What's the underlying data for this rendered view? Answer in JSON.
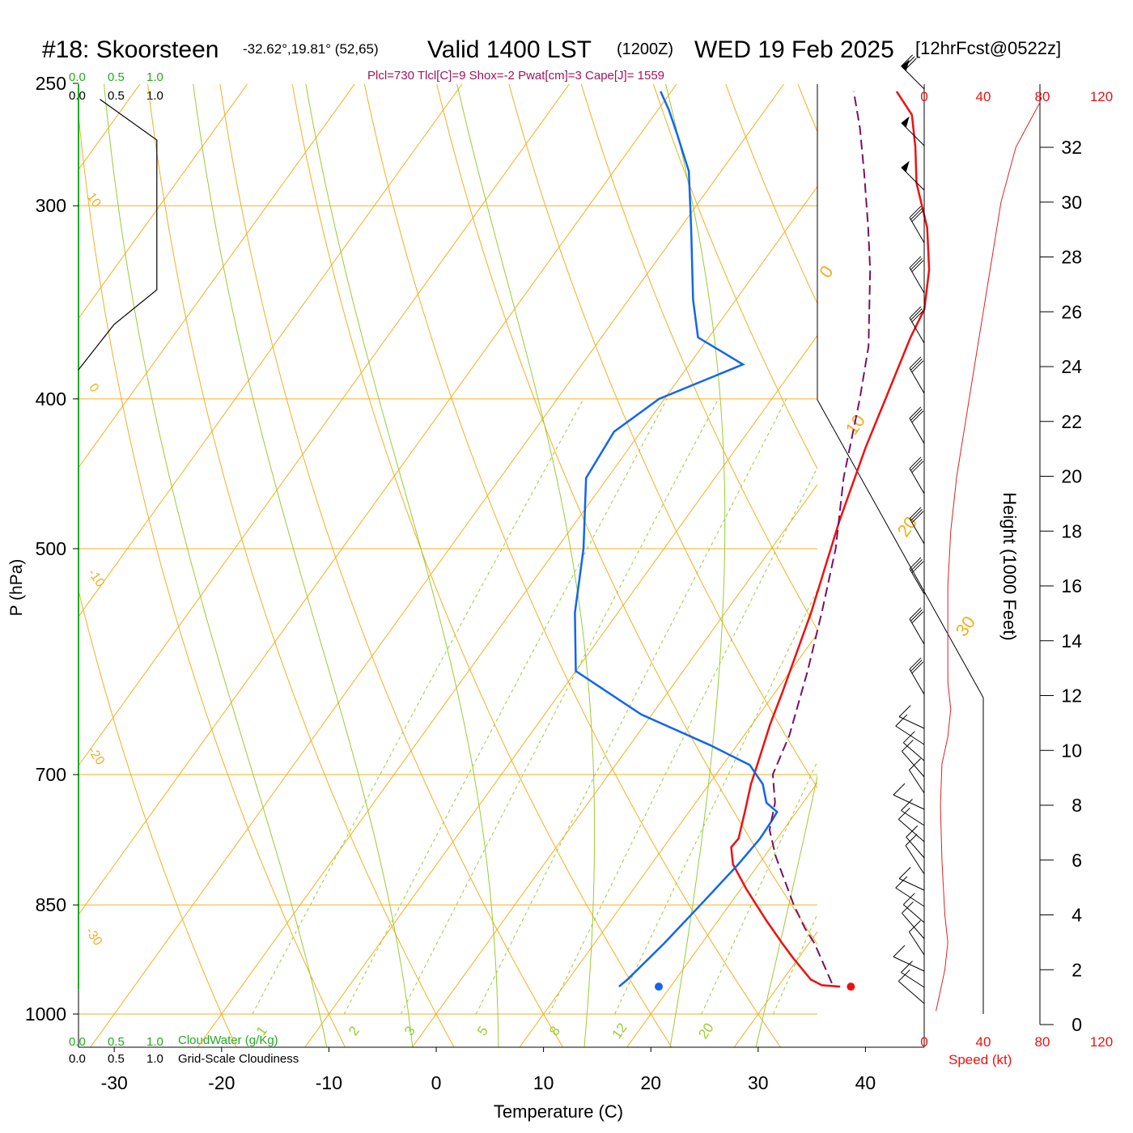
{
  "header": {
    "station": "#18: Skoorsteen",
    "coords": "-32.62°,19.81° (52,65)",
    "valid": "Valid 1400 LST",
    "zulu": "(1200Z)",
    "date": "WED 19 Feb 2025",
    "forecast": "[12hrFcst@0522z]",
    "indices": "Plcl=730 Tlcl[C]=9 Shox=-2 Pwat[cm]=3 Cape[J]= 1559"
  },
  "cloud_scale": {
    "top_green": [
      "0.0",
      "0.5",
      "1.0"
    ],
    "top_black": [
      "0.0",
      "0.5",
      "1.0"
    ],
    "bottom_green": [
      "0.0",
      "0.5",
      "1.0"
    ],
    "bottom_black": [
      "0.0",
      "0.5",
      "1.0"
    ],
    "cloudwater_label": "CloudWater (g/Kg)",
    "cloudiness_label": "Grid-Scale Cloudiness"
  },
  "chart_data": {
    "type": "line",
    "title": "",
    "xlabel": "Temperature (C)",
    "ylabel": "P (hPa)",
    "x_scale": "skewed",
    "y_scale": "log",
    "xlim": [
      -34,
      46
    ],
    "ylim": [
      1030,
      250
    ],
    "x_ticks": [
      "-30",
      "-20",
      "-10",
      "0",
      "10",
      "20",
      "30",
      "40"
    ],
    "y_ticks": [
      "250",
      "300",
      "400",
      "500",
      "700",
      "850",
      "1000"
    ],
    "grid": true,
    "isotherm_labels": [
      "10",
      "0",
      "-10",
      "-20",
      "-30",
      "0",
      "10",
      "20",
      "30"
    ],
    "mixing_ratio_labels": [
      "1",
      "2",
      "3",
      "5",
      "8",
      "12",
      "20"
    ],
    "series": [
      {
        "color": "#ee1111",
        "style": "solid",
        "points": [
          [
            35.8,
            960
          ],
          [
            34.0,
            958
          ],
          [
            32.6,
            950
          ],
          [
            29.5,
            920
          ],
          [
            27.5,
            900
          ],
          [
            24.5,
            870
          ],
          [
            20.5,
            830
          ],
          [
            17.6,
            800
          ],
          [
            16.3,
            780
          ],
          [
            16.4,
            770
          ],
          [
            16.0,
            760
          ],
          [
            15.2,
            740
          ],
          [
            13.9,
            710
          ],
          [
            13.2,
            690
          ],
          [
            11.7,
            650
          ],
          [
            10.7,
            620
          ],
          [
            8.0,
            550
          ],
          [
            4.5,
            480
          ],
          [
            2.0,
            430
          ],
          [
            0.6,
            400
          ],
          [
            -1.2,
            365
          ],
          [
            -1.8,
            350
          ],
          [
            -4.0,
            330
          ],
          [
            -7.0,
            310
          ],
          [
            -11.0,
            290
          ],
          [
            -13.5,
            275
          ],
          [
            -16.0,
            262
          ],
          [
            -19.0,
            253
          ]
        ]
      },
      {
        "color": "#1166ee",
        "style": "solid",
        "points": [
          [
            15.2,
            960
          ],
          [
            15.5,
            950
          ],
          [
            16.5,
            900
          ],
          [
            17.3,
            850
          ],
          [
            18.1,
            800
          ],
          [
            18.4,
            770
          ],
          [
            18.3,
            750
          ],
          [
            18.2,
            740
          ],
          [
            16.6,
            730
          ],
          [
            15.0,
            710
          ],
          [
            12.5,
            690
          ],
          [
            7.5,
            670
          ],
          [
            -1.0,
            640
          ],
          [
            -10.0,
            600
          ],
          [
            -14.0,
            550
          ],
          [
            -17.5,
            500
          ],
          [
            -22.0,
            450
          ],
          [
            -22.5,
            420
          ],
          [
            -20.5,
            400
          ],
          [
            -15.0,
            380
          ],
          [
            -21.0,
            365
          ],
          [
            -24.0,
            345
          ],
          [
            -29.0,
            310
          ],
          [
            -33.0,
            285
          ],
          [
            -36.5,
            270
          ],
          [
            -39.0,
            260
          ],
          [
            -41.0,
            253
          ]
        ]
      },
      {
        "color": "#7a1060",
        "style": "dashed",
        "points": [
          [
            34.8,
            955
          ],
          [
            30.5,
            900
          ],
          [
            28.6,
            880
          ],
          [
            26.0,
            850
          ],
          [
            21.0,
            790
          ],
          [
            18.7,
            760
          ],
          [
            17.4,
            730
          ],
          [
            15.3,
            700
          ],
          [
            14.2,
            660
          ],
          [
            11.6,
            600
          ],
          [
            9.0,
            550
          ],
          [
            6.0,
            500
          ],
          [
            2.0,
            450
          ],
          [
            -1.8,
            400
          ],
          [
            -4.5,
            370
          ],
          [
            -9.5,
            330
          ],
          [
            -12.5,
            310
          ],
          [
            -16.5,
            286
          ],
          [
            -20.0,
            267
          ],
          [
            -23.0,
            253
          ]
        ]
      }
    ],
    "surface_markers": [
      {
        "color": "#ee1111",
        "temp": 36.8,
        "pressure": 960
      },
      {
        "color": "#1166ee",
        "temp": 18.9,
        "pressure": 960
      }
    ],
    "cloud_profile": [
      [
        0.0,
        383
      ],
      [
        0.1,
        358
      ],
      [
        0.22,
        340
      ],
      [
        0.22,
        305
      ],
      [
        0.22,
        290
      ],
      [
        0.22,
        272
      ],
      [
        0.06,
        256
      ]
    ],
    "height_axis": {
      "label": "Height (1000 Feet)",
      "ticks": [
        "0",
        "2",
        "4",
        "6",
        "8",
        "10",
        "12",
        "14",
        "16",
        "18",
        "20",
        "22",
        "24",
        "26",
        "28",
        "30",
        "32"
      ]
    },
    "wind_speed_axis": {
      "label": "Speed (kt)",
      "ticks": [
        "0",
        "40",
        "80",
        "120"
      ],
      "profile_kt_vs_kft": [
        [
          8,
          0.5
        ],
        [
          10,
          1
        ],
        [
          12,
          1.5
        ],
        [
          14,
          2
        ],
        [
          16,
          3
        ],
        [
          14,
          4
        ],
        [
          13,
          5
        ],
        [
          12,
          6
        ],
        [
          11,
          8
        ],
        [
          12,
          9.5
        ],
        [
          16,
          10.5
        ],
        [
          18,
          11.5
        ],
        [
          16,
          12.5
        ],
        [
          16,
          14
        ],
        [
          16,
          16
        ],
        [
          18,
          18
        ],
        [
          22,
          20
        ],
        [
          28,
          22
        ],
        [
          34,
          24
        ],
        [
          40,
          26
        ],
        [
          46,
          28
        ],
        [
          52,
          30
        ],
        [
          62,
          32
        ],
        [
          72,
          33
        ],
        [
          78,
          33.6
        ]
      ]
    }
  }
}
